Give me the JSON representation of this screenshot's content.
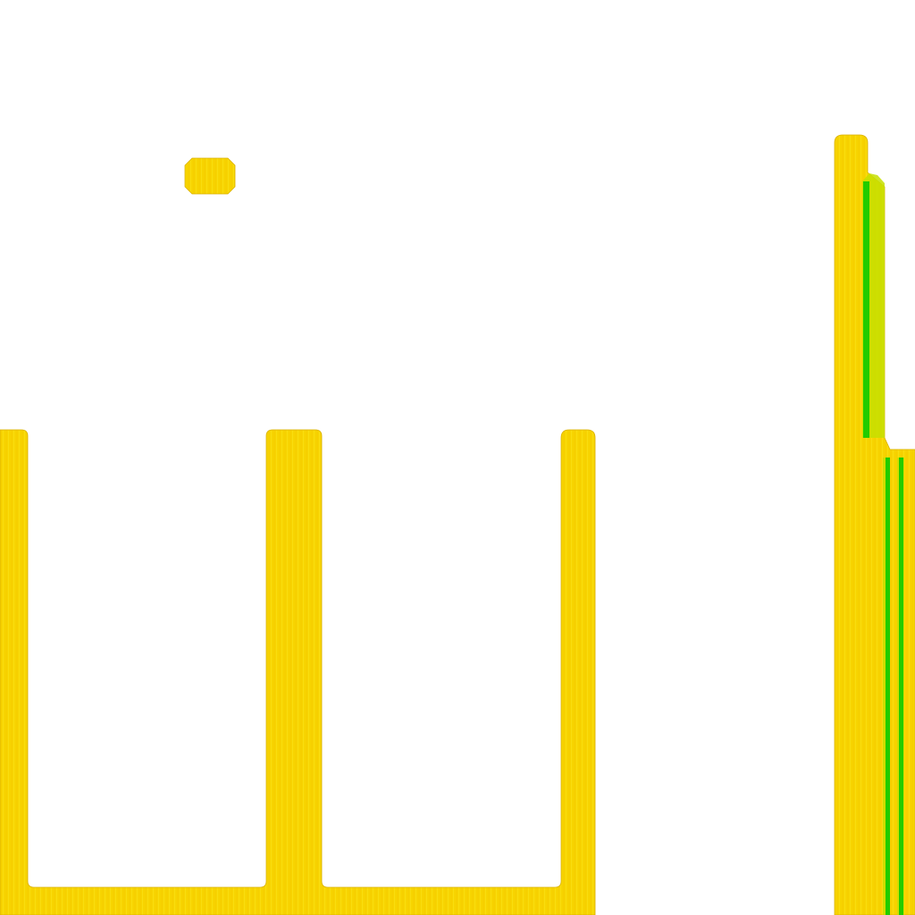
{
  "colors": {
    "background": "#ffffff",
    "copper_main": "#f7d400",
    "copper_dark": "#f2c400",
    "copper_light": "#f9e21a",
    "edge": "#d4a800",
    "highlight_green": "#22cc00",
    "highlight_lime": "#b8dd00"
  }
}
